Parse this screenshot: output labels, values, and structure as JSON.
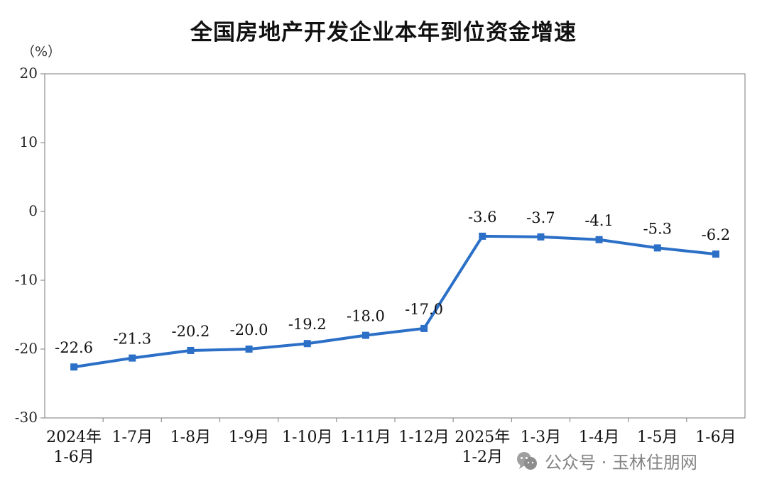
{
  "page": {
    "unit_label": "（%）",
    "watermark_text": "公众号 · 玉林住朋网",
    "watermark_icon": "wechat-icon"
  },
  "chart_data": {
    "type": "line",
    "title": "全国房地产开发企业本年到位资金增速",
    "xlabel": "",
    "ylabel": "",
    "ylim": [
      -30,
      20
    ],
    "yticks": [
      20,
      10,
      0,
      -10,
      -20,
      -30
    ],
    "grid": false,
    "categories": [
      [
        "2024年",
        "1-6月"
      ],
      [
        "1-7月"
      ],
      [
        "1-8月"
      ],
      [
        "1-9月"
      ],
      [
        "1-10月"
      ],
      [
        "1-11月"
      ],
      [
        "1-12月"
      ],
      [
        "2025年",
        "1-2月"
      ],
      [
        "1-3月"
      ],
      [
        "1-4月"
      ],
      [
        "1-5月"
      ],
      [
        "1-6月"
      ]
    ],
    "series": [
      {
        "values": [
          -22.6,
          -21.3,
          -20.2,
          -20.0,
          -19.2,
          -18.0,
          -17.0,
          -3.6,
          -3.7,
          -4.1,
          -5.3,
          -6.2
        ],
        "labels": [
          "-22.6",
          "-21.3",
          "-20.2",
          "-20.0",
          "-19.2",
          "-18.0",
          "-17.0",
          "-3.6",
          "-3.7",
          "-4.1",
          "-5.3",
          "-6.2"
        ],
        "color": "#2b6fc7"
      }
    ]
  }
}
